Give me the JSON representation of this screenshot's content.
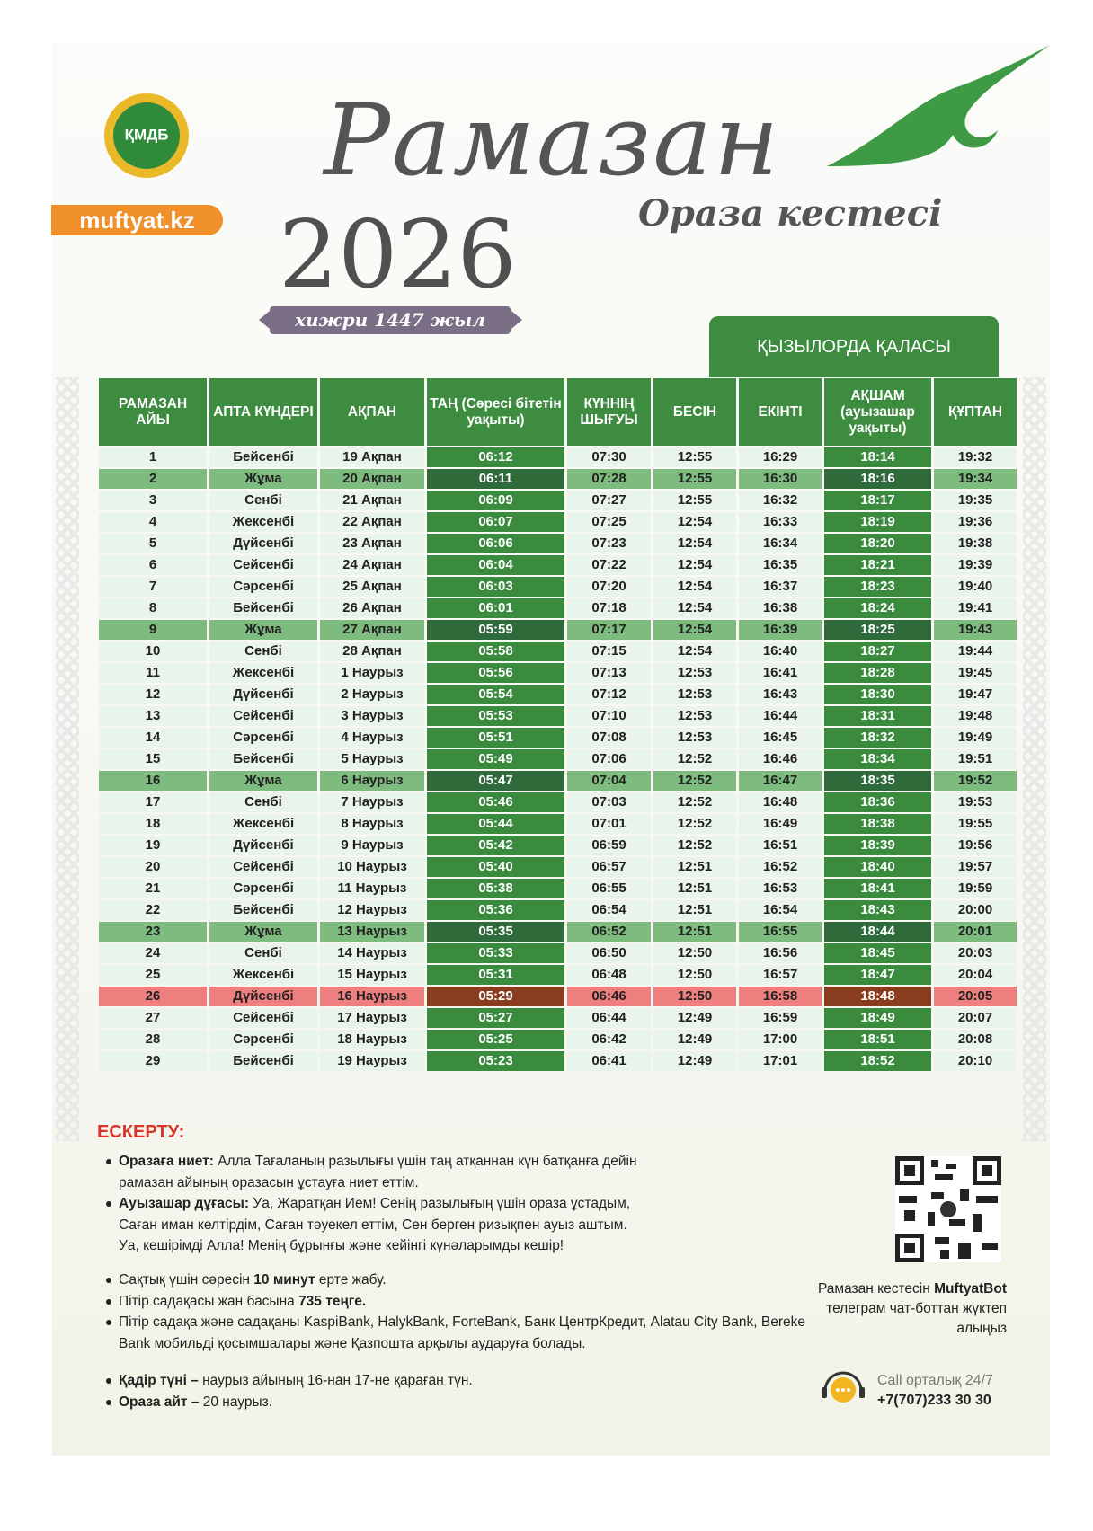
{
  "header": {
    "logo": "ҚМДБ",
    "site": "muftyat.kz",
    "title": "Рамазан",
    "year": "2026",
    "subtitle": "Ораза кестесі",
    "hijri": "хижри 1447 жыл",
    "city": "ҚЫЗЫЛОРДА ҚАЛАСЫ"
  },
  "table": {
    "columns": [
      "РАМАЗАН АЙЫ",
      "АПТА КҮНДЕРІ",
      "АҚПАН",
      "ТАҢ (Сәресі бітетін уақыты)",
      "КҮННІҢ ШЫҒУЫ",
      "БЕСІН",
      "ЕКІНТІ",
      "АҚШАМ (ауызашар уақыты)",
      "ҚҰПТАН"
    ],
    "rows": [
      [
        1,
        "Бейсенбі",
        "19 Ақпан",
        "06:12",
        "07:30",
        "12:55",
        "16:29",
        "18:14",
        "19:32"
      ],
      [
        2,
        "Жұма",
        "20 Ақпан",
        "06:11",
        "07:28",
        "12:55",
        "16:30",
        "18:16",
        "19:34"
      ],
      [
        3,
        "Сенбі",
        "21 Ақпан",
        "06:09",
        "07:27",
        "12:55",
        "16:32",
        "18:17",
        "19:35"
      ],
      [
        4,
        "Жексенбі",
        "22 Ақпан",
        "06:07",
        "07:25",
        "12:54",
        "16:33",
        "18:19",
        "19:36"
      ],
      [
        5,
        "Дүйсенбі",
        "23 Ақпан",
        "06:06",
        "07:23",
        "12:54",
        "16:34",
        "18:20",
        "19:38"
      ],
      [
        6,
        "Сейсенбі",
        "24 Ақпан",
        "06:04",
        "07:22",
        "12:54",
        "16:35",
        "18:21",
        "19:39"
      ],
      [
        7,
        "Сәрсенбі",
        "25 Ақпан",
        "06:03",
        "07:20",
        "12:54",
        "16:37",
        "18:23",
        "19:40"
      ],
      [
        8,
        "Бейсенбі",
        "26 Ақпан",
        "06:01",
        "07:18",
        "12:54",
        "16:38",
        "18:24",
        "19:41"
      ],
      [
        9,
        "Жұма",
        "27 Ақпан",
        "05:59",
        "07:17",
        "12:54",
        "16:39",
        "18:25",
        "19:43"
      ],
      [
        10,
        "Сенбі",
        "28 Ақпан",
        "05:58",
        "07:15",
        "12:54",
        "16:40",
        "18:27",
        "19:44"
      ],
      [
        11,
        "Жексенбі",
        "1 Наурыз",
        "05:56",
        "07:13",
        "12:53",
        "16:41",
        "18:28",
        "19:45"
      ],
      [
        12,
        "Дүйсенбі",
        "2 Наурыз",
        "05:54",
        "07:12",
        "12:53",
        "16:43",
        "18:30",
        "19:47"
      ],
      [
        13,
        "Сейсенбі",
        "3 Наурыз",
        "05:53",
        "07:10",
        "12:53",
        "16:44",
        "18:31",
        "19:48"
      ],
      [
        14,
        "Сәрсенбі",
        "4 Наурыз",
        "05:51",
        "07:08",
        "12:53",
        "16:45",
        "18:32",
        "19:49"
      ],
      [
        15,
        "Бейсенбі",
        "5 Наурыз",
        "05:49",
        "07:06",
        "12:52",
        "16:46",
        "18:34",
        "19:51"
      ],
      [
        16,
        "Жұма",
        "6 Наурыз",
        "05:47",
        "07:04",
        "12:52",
        "16:47",
        "18:35",
        "19:52"
      ],
      [
        17,
        "Сенбі",
        "7 Наурыз",
        "05:46",
        "07:03",
        "12:52",
        "16:48",
        "18:36",
        "19:53"
      ],
      [
        18,
        "Жексенбі",
        "8 Наурыз",
        "05:44",
        "07:01",
        "12:52",
        "16:49",
        "18:38",
        "19:55"
      ],
      [
        19,
        "Дүйсенбі",
        "9 Наурыз",
        "05:42",
        "06:59",
        "12:52",
        "16:51",
        "18:39",
        "19:56"
      ],
      [
        20,
        "Сейсенбі",
        "10 Наурыз",
        "05:40",
        "06:57",
        "12:51",
        "16:52",
        "18:40",
        "19:57"
      ],
      [
        21,
        "Сәрсенбі",
        "11 Наурыз",
        "05:38",
        "06:55",
        "12:51",
        "16:53",
        "18:41",
        "19:59"
      ],
      [
        22,
        "Бейсенбі",
        "12 Наурыз",
        "05:36",
        "06:54",
        "12:51",
        "16:54",
        "18:43",
        "20:00"
      ],
      [
        23,
        "Жұма",
        "13 Наурыз",
        "05:35",
        "06:52",
        "12:51",
        "16:55",
        "18:44",
        "20:01"
      ],
      [
        24,
        "Сенбі",
        "14 Наурыз",
        "05:33",
        "06:50",
        "12:50",
        "16:56",
        "18:45",
        "20:03"
      ],
      [
        25,
        "Жексенбі",
        "15 Наурыз",
        "05:31",
        "06:48",
        "12:50",
        "16:57",
        "18:47",
        "20:04"
      ],
      [
        26,
        "Дүйсенбі",
        "16 Наурыз",
        "05:29",
        "06:46",
        "12:50",
        "16:58",
        "18:48",
        "20:05"
      ],
      [
        27,
        "Сейсенбі",
        "17 Наурыз",
        "05:27",
        "06:44",
        "12:49",
        "16:59",
        "18:49",
        "20:07"
      ],
      [
        28,
        "Сәрсенбі",
        "18 Наурыз",
        "05:25",
        "06:42",
        "12:49",
        "17:00",
        "18:51",
        "20:08"
      ],
      [
        29,
        "Бейсенбі",
        "19 Наурыз",
        "05:23",
        "06:41",
        "12:49",
        "17:01",
        "18:52",
        "20:10"
      ]
    ],
    "colors": {
      "header": "#3d8c40",
      "light": "#e9f4eb",
      "dark": "#3b8b3e"
    },
    "dark_columns": [
      3,
      7
    ],
    "highlight": [
      {
        "rows": [
          1,
          8,
          15,
          22
        ],
        "light": "#7dbb7e",
        "dark": "#2f6a3b"
      },
      {
        "rows": [
          25
        ],
        "light": "#ef7f7f",
        "dark": "#8a3c1e"
      }
    ]
  },
  "notes": {
    "heading": "ЕСКЕРТУ:",
    "groups": [
      [
        [
          {
            "text": "Оразаға ниет:",
            "bold": true
          },
          {
            "text": " Алла Тағаланың разылығы үшін таң атқаннан күн батқанға дейін рамазан айының оразасын ұстауға ниет еттім."
          }
        ],
        [
          {
            "text": "Ауызашар дұғасы:",
            "bold": true
          },
          {
            "text": " Уа, Жаратқан Ием! Сенің разылығың үшін ораза ұстадым, Саған иман келтірдім, Саған тәуекел еттім, Сен берген ризықпен ауыз аштым. Уа, кешірімді Алла! Менің бұрынғы және кейінгі күнәларымды кешір!"
          }
        ]
      ],
      [
        [
          {
            "text": "Сақтық үшін сәресін "
          },
          {
            "text": "10 минут",
            "bold": true
          },
          {
            "text": " ерте жабу."
          }
        ],
        [
          {
            "text": "Пітір садақасы жан басына "
          },
          {
            "text": "735 теңге.",
            "bold": true
          }
        ],
        [
          {
            "text": "Пітір садақа және садақаны KaspiBank, HalykBank, ForteBank, Банк ЦентрКредит, Alatau City Bank, Bereke Bank мобильді қосымшалары және Қазпошта арқылы аударуға болады."
          }
        ]
      ],
      [
        [
          {
            "text": "Қадір түні –",
            "bold": true
          },
          {
            "text": " наурыз айының 16-нан 17-не қараған түн."
          }
        ],
        [
          {
            "text": "Ораза айт –",
            "bold": true
          },
          {
            "text": " 20 наурыз."
          }
        ]
      ]
    ]
  },
  "bot": [
    {
      "text": "Рамазан кестесін "
    },
    {
      "text": "MuftyatBot",
      "bold": true
    },
    {
      "text": " телеграм чат-боттан жүктеп алыңыз"
    }
  ],
  "call": {
    "label": "Call орталық 24/7",
    "phone": "+7(707)233 30 30"
  }
}
